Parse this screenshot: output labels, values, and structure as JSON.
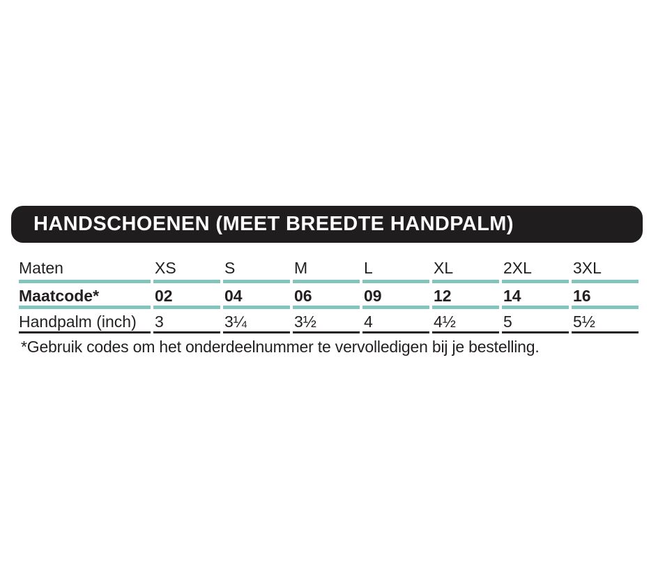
{
  "banner": {
    "title": "HANDSCHOENEN (MEET BREEDTE HANDPALM)"
  },
  "table": {
    "rows": [
      {
        "label": "Maten",
        "values": [
          "XS",
          "S",
          "M",
          "L",
          "XL",
          "2XL",
          "3XL"
        ]
      },
      {
        "label": "Maatcode*",
        "values": [
          "02",
          "04",
          "06",
          "09",
          "12",
          "14",
          "16"
        ]
      },
      {
        "label": "Handpalm (inch)",
        "values": [
          "3",
          "3¼",
          "3½",
          "4",
          "4½",
          "5",
          "5½"
        ]
      }
    ]
  },
  "footnote": "*Gebruik codes om het onderdeelnummer te vervolledigen bij je bestelling.",
  "colors": {
    "banner_bg": "#201d1e",
    "banner_fg": "#ffffff",
    "accent_teal": "#82c5be",
    "text": "#231f20"
  }
}
